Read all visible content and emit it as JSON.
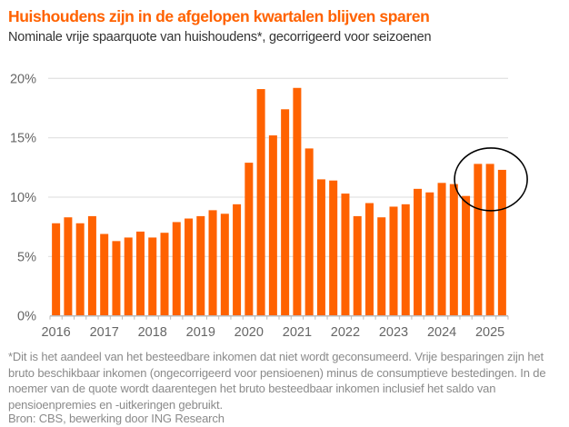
{
  "header": {
    "title": "Huishoudens zijn in de afgelopen kwartalen blijven sparen",
    "subtitle": "Nominale vrije spaarquote van huishoudens*, gecorrigeerd voor seizoenen"
  },
  "footer": {
    "footnote": "*Dit is het aandeel van het besteedbare inkomen dat niet wordt geconsumeerd. Vrije besparingen zijn het bruto beschikbaar inkomen (ongecorrigeerd voor pensioenen) minus de consumptieve bestedingen. In de noemer van de quote wordt daarentegen het bruto besteedbaar inkomen inclusief het saldo van pensioenpremies en -uitkeringen gebruikt.",
    "source": "Bron: CBS, bewerking door ING Research"
  },
  "colors": {
    "bar": "#FF6200",
    "title": "#FF6200",
    "grid": "#e3e3e3",
    "axis": "#bbbbbb",
    "highlight_ellipse": "#000000"
  },
  "chart_data": {
    "type": "bar",
    "title": "Huishoudens zijn in de afgelopen kwartalen blijven sparen",
    "subtitle": "Nominale vrije spaarquote van huishoudens*, gecorrigeerd voor seizoenen",
    "xlabel": "",
    "ylabel": "",
    "ylim": [
      0,
      20
    ],
    "yticks": [
      0,
      5,
      10,
      15,
      20
    ],
    "ytick_labels": [
      "0%",
      "5%",
      "10%",
      "15%",
      "20%"
    ],
    "grid": true,
    "legend": "none",
    "year_labels": [
      "2016",
      "2017",
      "2018",
      "2019",
      "2020",
      "2021",
      "2022",
      "2023",
      "2024",
      "2025"
    ],
    "categories": [
      "2016Q1",
      "2016Q2",
      "2016Q3",
      "2016Q4",
      "2017Q1",
      "2017Q2",
      "2017Q3",
      "2017Q4",
      "2018Q1",
      "2018Q2",
      "2018Q3",
      "2018Q4",
      "2019Q1",
      "2019Q2",
      "2019Q3",
      "2019Q4",
      "2020Q1",
      "2020Q2",
      "2020Q3",
      "2020Q4",
      "2021Q1",
      "2021Q2",
      "2021Q3",
      "2021Q4",
      "2022Q1",
      "2022Q2",
      "2022Q3",
      "2022Q4",
      "2023Q1",
      "2023Q2",
      "2023Q3",
      "2023Q4",
      "2024Q1",
      "2024Q2",
      "2024Q3",
      "2024Q4",
      "2025Q1",
      "2025Q2"
    ],
    "values": [
      7.8,
      8.3,
      7.8,
      8.4,
      6.9,
      6.3,
      6.6,
      7.1,
      6.6,
      7.0,
      7.9,
      8.2,
      8.4,
      8.9,
      8.6,
      9.4,
      12.9,
      19.1,
      15.2,
      17.4,
      19.2,
      14.1,
      11.5,
      11.4,
      10.3,
      8.4,
      9.5,
      8.3,
      9.2,
      9.4,
      10.7,
      10.4,
      11.2,
      11.1,
      10.1,
      12.8,
      12.8,
      12.3
    ],
    "annotations": [
      {
        "type": "ellipse",
        "description": "highlight of most recent quarters",
        "covers": [
          "2024Q4",
          "2025Q1",
          "2025Q2"
        ]
      }
    ]
  }
}
